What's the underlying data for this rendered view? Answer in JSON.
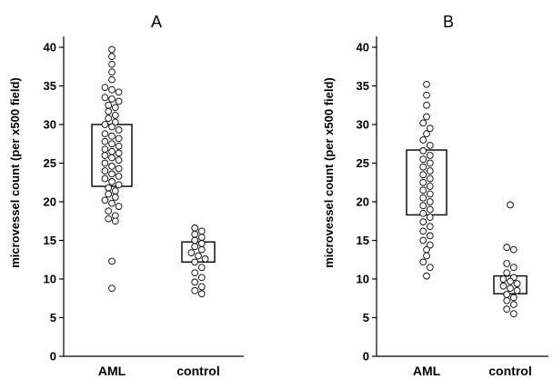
{
  "chart_data": [
    {
      "type": "scatter",
      "title": "A",
      "ylabel": "microvessel count (per x500 field)",
      "xlabel": "",
      "ylim": [
        0,
        42
      ],
      "yticks": [
        0,
        5,
        10,
        15,
        20,
        25,
        30,
        35,
        40
      ],
      "categories": [
        "AML",
        "control"
      ],
      "series": [
        {
          "box": [
            22,
            30
          ],
          "values": [
            39.7,
            38.8,
            37.8,
            36.8,
            35.8,
            34.8,
            34.5,
            34.2,
            33.5,
            33.3,
            33.0,
            32.5,
            32.2,
            31.7,
            31.2,
            30.8,
            30.3,
            30.0,
            29.7,
            29.3,
            28.8,
            28.5,
            28.2,
            27.8,
            27.5,
            27.2,
            26.8,
            26.5,
            26.3,
            26.0,
            25.7,
            25.4,
            25.0,
            24.6,
            24.3,
            24.0,
            23.6,
            23.3,
            23.0,
            22.6,
            22.2,
            21.8,
            21.4,
            21.0,
            20.6,
            20.2,
            19.8,
            19.4,
            18.8,
            18.2,
            17.8,
            17.5,
            12.3,
            8.8
          ]
        },
        {
          "box": [
            12.2,
            14.8
          ],
          "values": [
            16.6,
            16.2,
            15.8,
            15.4,
            15.0,
            14.6,
            14.2,
            13.8,
            13.4,
            13.0,
            12.6,
            12.2,
            11.5,
            10.8,
            10.2,
            9.6,
            9.0,
            8.5,
            8.1
          ]
        }
      ]
    },
    {
      "type": "scatter",
      "title": "B",
      "ylabel": "microvessel count (per x500 field)",
      "xlabel": "",
      "ylim": [
        0,
        42
      ],
      "yticks": [
        0,
        5,
        10,
        15,
        20,
        25,
        30,
        35,
        40
      ],
      "categories": [
        "AML",
        "control"
      ],
      "series": [
        {
          "box": [
            18.3,
            26.7
          ],
          "values": [
            35.2,
            33.8,
            32.5,
            31.0,
            30.2,
            29.5,
            28.8,
            28.0,
            27.3,
            26.6,
            26.0,
            25.5,
            25.0,
            24.5,
            24.0,
            23.5,
            23.0,
            22.5,
            22.0,
            21.5,
            21.0,
            20.5,
            20.0,
            19.5,
            19.0,
            18.5,
            18.0,
            17.4,
            16.8,
            16.2,
            15.6,
            15.0,
            14.4,
            13.8,
            13.0,
            12.2,
            11.5,
            10.4
          ]
        },
        {
          "box": [
            8.1,
            10.4
          ],
          "values": [
            19.6,
            14.1,
            13.8,
            12.0,
            11.5,
            10.8,
            10.2,
            10.0,
            9.7,
            9.4,
            9.1,
            8.8,
            8.5,
            8.0,
            7.6,
            7.2,
            6.7,
            6.1,
            5.5
          ]
        }
      ]
    }
  ]
}
